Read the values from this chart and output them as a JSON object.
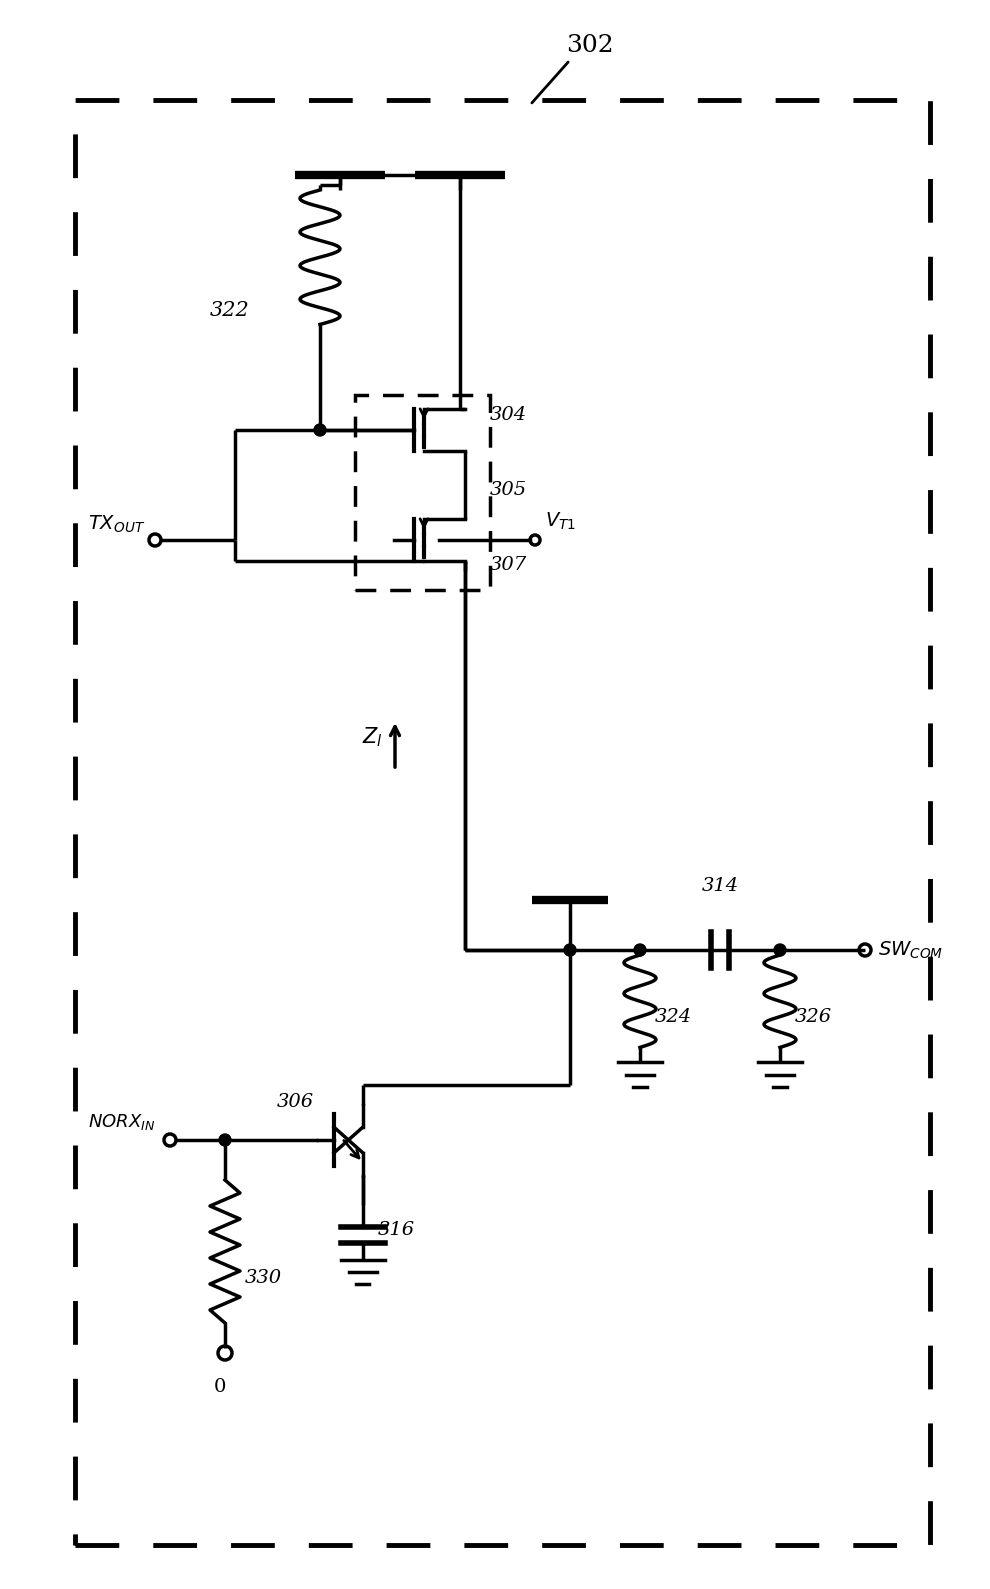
{
  "bg_color": "#ffffff",
  "fig_w": 9.9,
  "fig_h": 15.89,
  "dpi": 100
}
